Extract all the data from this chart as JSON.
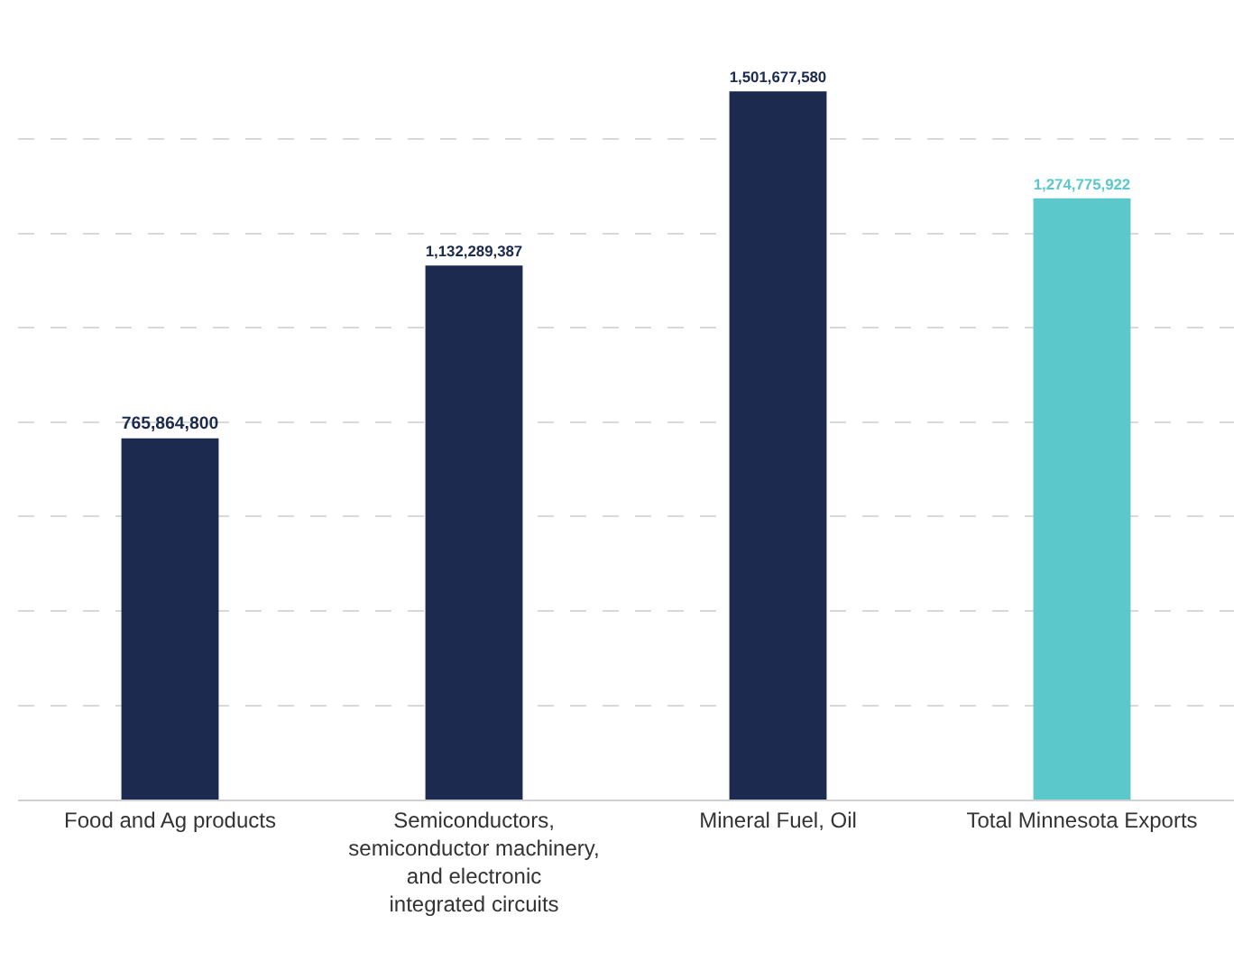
{
  "chart_data": {
    "type": "bar",
    "categories": [
      "Food and Ag products",
      "Semiconductors, semiconductor machinery, and electronic integrated circuits",
      "Mineral Fuel, Oil",
      "Total Minnesota Exports"
    ],
    "values": [
      765864800,
      1132289387,
      1501677580,
      1274775922
    ],
    "value_labels": [
      "765,864,800",
      "1,132,289,387",
      "1,501,677,580",
      "1,274,775,922"
    ],
    "colors": [
      "#1b2a4e",
      "#1b2a4e",
      "#1b2a4e",
      "#5bc8cb"
    ],
    "grid": "y",
    "tick_labels": "x"
  }
}
